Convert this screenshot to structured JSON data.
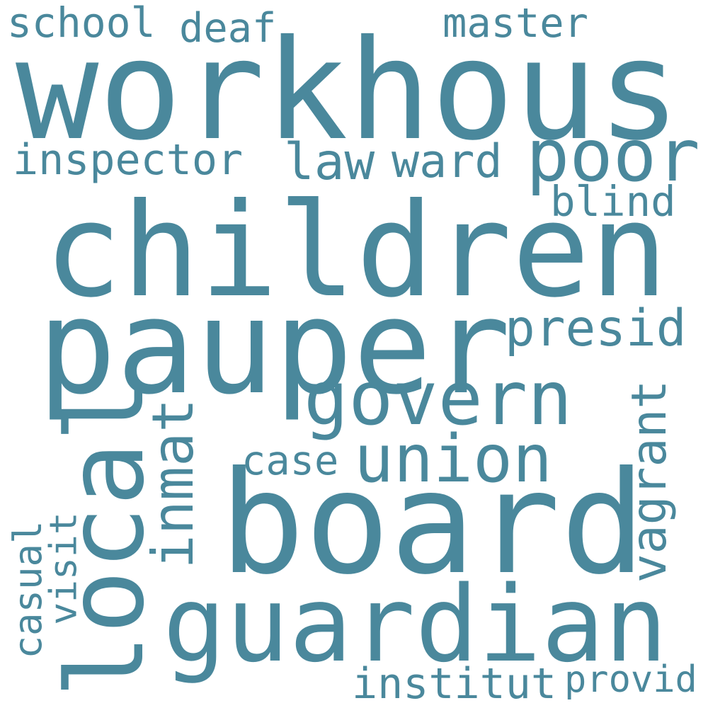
{
  "cloud": {
    "color": "#4a889c",
    "background": "#ffffff",
    "words": {
      "workhous": "workhous",
      "children": "children",
      "pauper": "pauper",
      "board": "board",
      "guardian": "guardian",
      "local": "local",
      "govern": "govern",
      "union": "union",
      "poor": "poor",
      "inmat": "inmat",
      "presid": "presid",
      "vagrant": "vagrant",
      "ward": "ward",
      "law": "law",
      "inspector": "inspector",
      "blind": "blind",
      "school": "school",
      "deaf": "deaf",
      "master": "master",
      "case": "case",
      "casual": "casual",
      "visit": "visit",
      "institut": "institut",
      "provid": "provid"
    }
  }
}
